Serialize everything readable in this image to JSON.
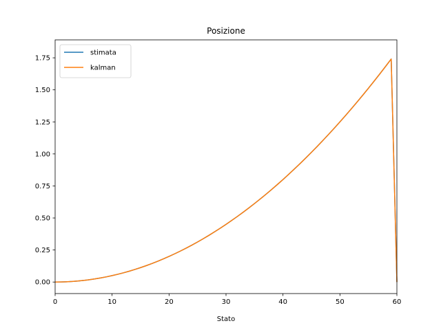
{
  "chart_data": {
    "type": "line",
    "title": "Posizione",
    "xlabel": "Stato",
    "ylabel": "",
    "xlim": [
      0,
      60
    ],
    "ylim": [
      -0.09,
      1.89
    ],
    "xticks": [
      0,
      10,
      20,
      30,
      40,
      50,
      60
    ],
    "yticks": [
      0.0,
      0.25,
      0.5,
      0.75,
      1.0,
      1.25,
      1.5,
      1.75
    ],
    "ytick_labels": [
      "0.00",
      "0.25",
      "0.50",
      "0.75",
      "1.00",
      "1.25",
      "1.50",
      "1.75"
    ],
    "grid": false,
    "legend_position": "top-left",
    "series": [
      {
        "name": "stimata",
        "color": "#1f77b4",
        "x": [
          0,
          1,
          2,
          3,
          4,
          5,
          6,
          7,
          8,
          9,
          10,
          11,
          12,
          13,
          14,
          15,
          16,
          17,
          18,
          19,
          20,
          21,
          22,
          23,
          24,
          25,
          26,
          27,
          28,
          29,
          30,
          31,
          32,
          33,
          34,
          35,
          36,
          37,
          38,
          39,
          40,
          41,
          42,
          43,
          44,
          45,
          46,
          47,
          48,
          49,
          50,
          51,
          52,
          53,
          54,
          55,
          56,
          57,
          58,
          59,
          60
        ],
        "y": [
          0.0,
          0.0005,
          0.002,
          0.0045,
          0.008,
          0.0125,
          0.018,
          0.0245,
          0.032,
          0.0405,
          0.05,
          0.0605,
          0.072,
          0.0845,
          0.098,
          0.1125,
          0.128,
          0.1445,
          0.162,
          0.1805,
          0.2,
          0.2205,
          0.242,
          0.2645,
          0.288,
          0.3125,
          0.338,
          0.3645,
          0.392,
          0.4205,
          0.45,
          0.4805,
          0.512,
          0.5445,
          0.578,
          0.6125,
          0.648,
          0.6845,
          0.722,
          0.7605,
          0.8,
          0.8405,
          0.882,
          0.9245,
          0.968,
          1.0125,
          1.058,
          1.1045,
          1.152,
          1.2005,
          1.25,
          1.3005,
          1.352,
          1.4045,
          1.458,
          1.5125,
          1.568,
          1.6245,
          1.682,
          1.7405,
          0.0
        ]
      },
      {
        "name": "kalman",
        "color": "#ff7f0e",
        "x": [
          0,
          1,
          2,
          3,
          4,
          5,
          6,
          7,
          8,
          9,
          10,
          11,
          12,
          13,
          14,
          15,
          16,
          17,
          18,
          19,
          20,
          21,
          22,
          23,
          24,
          25,
          26,
          27,
          28,
          29,
          30,
          31,
          32,
          33,
          34,
          35,
          36,
          37,
          38,
          39,
          40,
          41,
          42,
          43,
          44,
          45,
          46,
          47,
          48,
          49,
          50,
          51,
          52,
          53,
          54,
          55,
          56,
          57,
          58,
          59,
          60
        ],
        "y": [
          0.0,
          0.0005,
          0.002,
          0.0045,
          0.008,
          0.0125,
          0.018,
          0.0245,
          0.032,
          0.0405,
          0.05,
          0.0605,
          0.072,
          0.0845,
          0.098,
          0.1125,
          0.128,
          0.1445,
          0.162,
          0.1805,
          0.2,
          0.2205,
          0.242,
          0.2645,
          0.288,
          0.3125,
          0.338,
          0.3645,
          0.392,
          0.4205,
          0.45,
          0.4805,
          0.512,
          0.5445,
          0.578,
          0.6125,
          0.648,
          0.6845,
          0.722,
          0.7605,
          0.8,
          0.8405,
          0.882,
          0.9245,
          0.968,
          1.0125,
          1.058,
          1.1045,
          1.152,
          1.2005,
          1.25,
          1.3005,
          1.352,
          1.4045,
          1.458,
          1.5125,
          1.568,
          1.6245,
          1.682,
          1.7405,
          0.0
        ]
      }
    ]
  }
}
